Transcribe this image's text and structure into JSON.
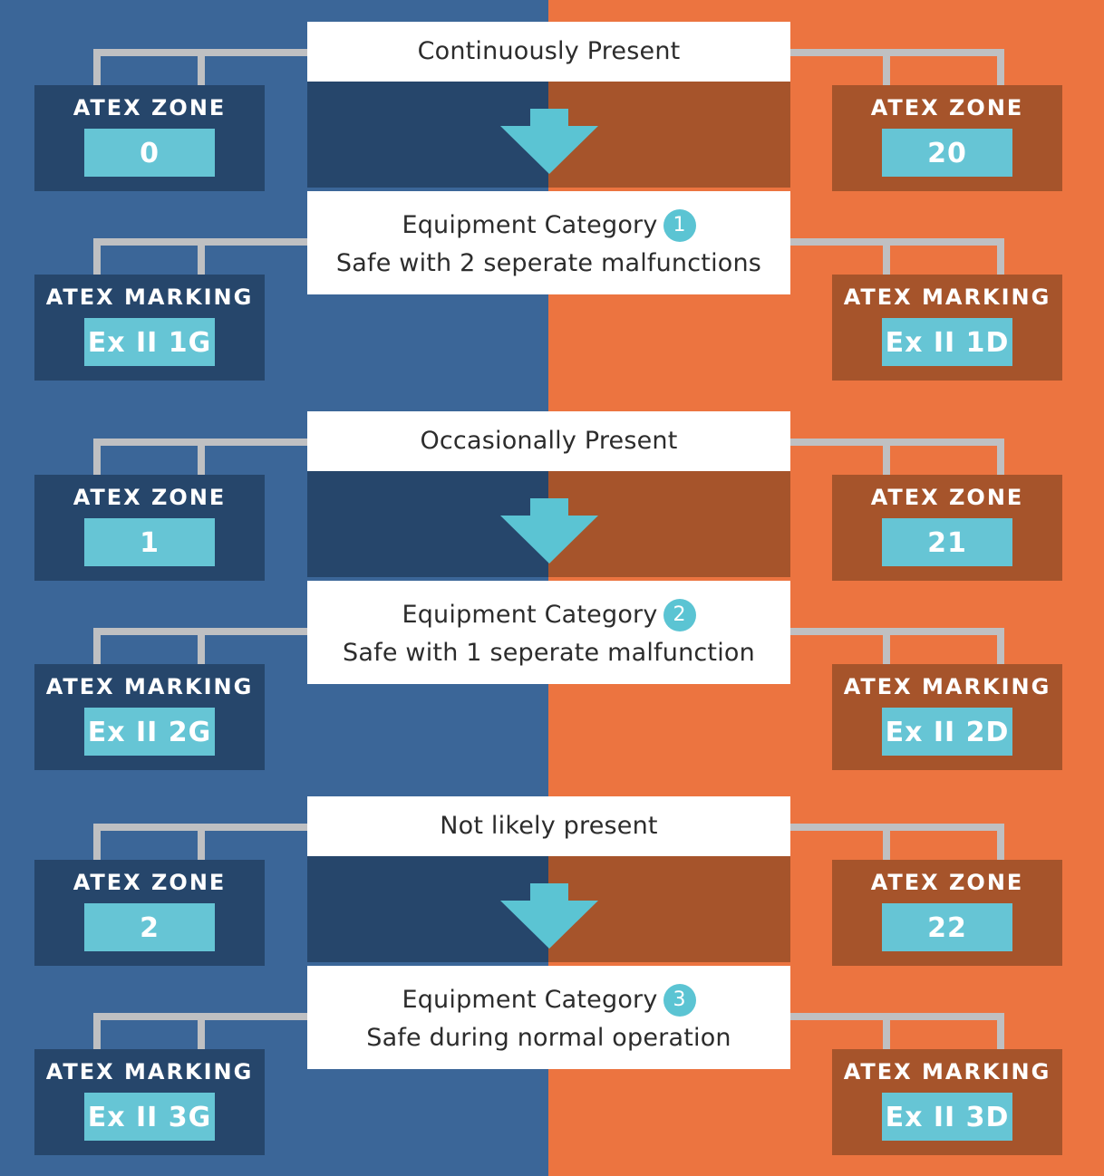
{
  "colors": {
    "gas_background": "#3b6698",
    "dust_background": "#ec7440",
    "gas_box": "#26466b",
    "dust_box": "#a6542b",
    "value_box": "#66c5d5",
    "connector": "#bfc0c2",
    "arrow": "#5bc4d3"
  },
  "sections": [
    {
      "presence": "Continuously Present",
      "category_label": "Equipment Category",
      "category_number": "1",
      "category_description": "Safe with 2 seperate malfunctions",
      "gas": {
        "zone_label": "ATEX ZONE",
        "zone_value": "0",
        "marking_label": "ATEX MARKING",
        "marking_value": "Ex II 1G"
      },
      "dust": {
        "zone_label": "ATEX ZONE",
        "zone_value": "20",
        "marking_label": "ATEX MARKING",
        "marking_value": "Ex II 1D"
      }
    },
    {
      "presence": "Occasionally Present",
      "category_label": "Equipment Category",
      "category_number": "2",
      "category_description": "Safe with 1 seperate malfunction",
      "gas": {
        "zone_label": "ATEX ZONE",
        "zone_value": "1",
        "marking_label": "ATEX MARKING",
        "marking_value": "Ex II 2G"
      },
      "dust": {
        "zone_label": "ATEX ZONE",
        "zone_value": "21",
        "marking_label": "ATEX MARKING",
        "marking_value": "Ex II 2D"
      }
    },
    {
      "presence": "Not likely present",
      "category_label": "Equipment Category",
      "category_number": "3",
      "category_description": "Safe during normal operation",
      "gas": {
        "zone_label": "ATEX ZONE",
        "zone_value": "2",
        "marking_label": "ATEX MARKING",
        "marking_value": "Ex II 3G"
      },
      "dust": {
        "zone_label": "ATEX ZONE",
        "zone_value": "22",
        "marking_label": "ATEX MARKING",
        "marking_value": "Ex II 3D"
      }
    }
  ]
}
